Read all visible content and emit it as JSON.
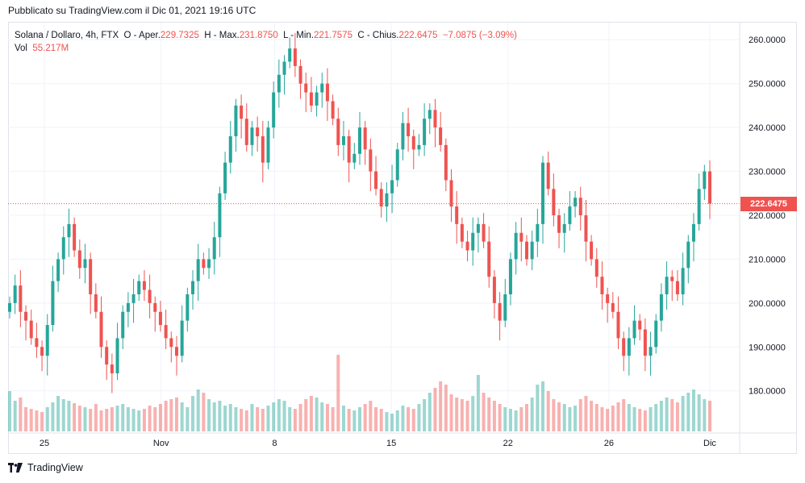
{
  "header": {
    "published": "Pubblicato su TradingView.com il Dic 01, 2021 19:16 UTC"
  },
  "legend": {
    "symbol": "Solana / Dollaro, 4h, FTX",
    "open_label": "O - Aper.",
    "open_value": "229.7325",
    "high_label": "H - Max.",
    "high_value": "231.8750",
    "low_label": "L - Min.",
    "low_value": "221.7575",
    "close_label": "C - Chius.",
    "close_value": "222.6475",
    "change_value": "−7.0875 (−3.09%)",
    "vol_label": "Vol",
    "vol_value": "55.217M"
  },
  "last_price": "222.6475",
  "colors": {
    "up": "#26a69a",
    "down": "#ef5350",
    "grid": "#f0f3fa"
  },
  "footer": {
    "brand": "TradingView",
    "logo_icon": "tradingview-logo-icon"
  },
  "chart_data": {
    "type": "candlestick",
    "interval": "4h",
    "x_ticks": [
      "25",
      "Nov",
      "8",
      "15",
      "22",
      "26",
      "Dic"
    ],
    "y_ticks": [
      "260.0000",
      "250.0000",
      "240.0000",
      "230.0000",
      "220.0000",
      "210.0000",
      "200.0000",
      "190.0000",
      "180.0000"
    ],
    "ylim": [
      170.4,
      263.9
    ],
    "last_price": 222.6475,
    "closes": [
      200,
      204,
      198,
      196,
      192,
      190,
      188,
      195,
      205,
      210,
      215,
      218,
      212,
      208,
      210,
      202,
      198,
      190,
      186,
      184,
      192,
      198,
      200,
      202,
      205,
      203,
      200,
      198,
      195,
      192,
      190,
      188,
      196,
      202,
      205,
      210,
      208,
      210,
      215,
      225,
      232,
      238,
      245,
      242,
      236,
      240,
      238,
      232,
      240,
      248,
      252,
      255,
      258,
      254,
      250,
      248,
      245,
      248,
      250,
      246,
      242,
      236,
      238,
      232,
      234,
      240,
      235,
      230,
      226,
      222,
      225,
      228,
      235,
      241,
      238,
      235,
      236,
      242,
      244,
      240,
      236,
      228,
      222,
      218,
      214,
      212,
      216,
      218,
      214,
      206,
      200,
      196,
      202,
      210,
      216,
      214,
      210,
      214,
      218,
      232,
      226,
      220,
      216,
      218,
      222,
      224,
      220,
      214,
      210,
      206,
      202,
      200,
      198,
      192,
      188,
      192,
      196,
      194,
      188,
      190,
      196,
      202,
      206,
      205,
      202,
      208,
      214,
      218,
      226,
      230,
      222.65
    ],
    "volumes": [
      50,
      38,
      42,
      30,
      28,
      26,
      24,
      30,
      36,
      44,
      40,
      38,
      35,
      32,
      30,
      28,
      34,
      26,
      28,
      30,
      32,
      34,
      30,
      28,
      26,
      28,
      32,
      30,
      34,
      38,
      40,
      42,
      36,
      30,
      44,
      52,
      48,
      40,
      36,
      38,
      32,
      34,
      30,
      28,
      26,
      34,
      30,
      28,
      32,
      36,
      40,
      38,
      30,
      28,
      34,
      40,
      44,
      42,
      36,
      34,
      30,
      95,
      32,
      28,
      26,
      30,
      34,
      38,
      30,
      28,
      24,
      22,
      26,
      32,
      30,
      28,
      34,
      40,
      48,
      54,
      62,
      58,
      46,
      42,
      40,
      38,
      44,
      70,
      48,
      42,
      38,
      34,
      30,
      28,
      26,
      30,
      34,
      42,
      58,
      62,
      50,
      40,
      36,
      34,
      30,
      32,
      40,
      44,
      38,
      34,
      30,
      28,
      32,
      36,
      40,
      34,
      30,
      28,
      26,
      30,
      34,
      38,
      42,
      40,
      36,
      44,
      48,
      52,
      46,
      40,
      38
    ]
  }
}
